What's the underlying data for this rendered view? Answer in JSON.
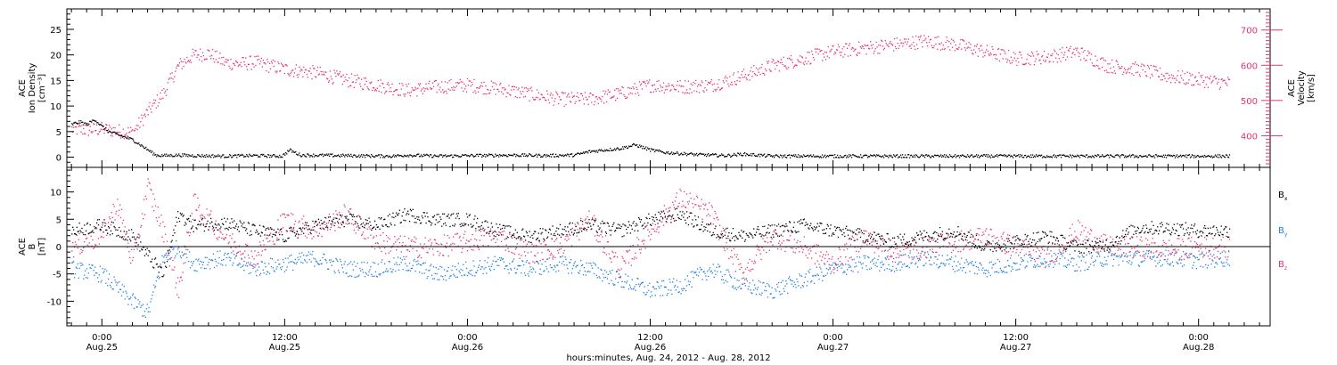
{
  "chart_data": [
    {
      "type": "scatter",
      "panel": "top",
      "left_axis": {
        "label_lines": [
          "ACE",
          "Ion Density",
          "[cm⁻³]"
        ],
        "ylim": [
          -2,
          29
        ],
        "ticks": [
          0,
          5,
          10,
          15,
          20,
          25
        ],
        "tick_labels": [
          "0",
          "5",
          "10",
          "15",
          "20",
          "25"
        ],
        "color": "#000000"
      },
      "right_axis": {
        "label_lines": [
          "ACE",
          "Velocity",
          "[km/s]"
        ],
        "ylim": [
          310,
          760
        ],
        "ticks": [
          400,
          500,
          600,
          700
        ],
        "tick_labels": [
          "400",
          "500",
          "600",
          "700"
        ],
        "color": "#e8336a"
      },
      "series": [
        {
          "axis": "left",
          "color": "#000000",
          "x_hours": [
            -2,
            -1.5,
            -1,
            -0.5,
            0,
            0.5,
            1,
            1.5,
            2,
            2.5,
            3,
            3.5,
            4,
            5,
            6,
            8,
            10,
            11.8,
            12.3,
            13,
            16,
            19,
            20,
            22,
            24,
            27,
            29,
            31,
            32,
            33,
            34,
            35,
            36,
            37,
            39,
            41,
            42,
            44,
            48,
            52,
            56,
            60,
            64,
            68,
            72,
            74
          ],
          "values": [
            6.5,
            7,
            6.5,
            7.5,
            6,
            5,
            4.5,
            4,
            3.5,
            2.5,
            1.5,
            0.5,
            0.4,
            0.5,
            0.4,
            0.3,
            0.4,
            0.3,
            1.5,
            0.5,
            0.4,
            0.3,
            0.5,
            0.3,
            0.4,
            0.5,
            0.4,
            0.5,
            1.2,
            1.5,
            1.8,
            2.5,
            1.5,
            1.0,
            0.6,
            0.4,
            0.7,
            0.3,
            0.3,
            0.3,
            0.3,
            0.3,
            0.3,
            0.3,
            0.3,
            0.3
          ]
        },
        {
          "axis": "right",
          "color": "#e8336a",
          "x_hours": [
            -2,
            -1,
            0,
            1,
            2,
            3,
            4,
            5,
            6,
            7,
            8,
            9,
            10,
            12,
            14,
            16,
            18,
            20,
            22,
            24,
            26,
            28,
            30,
            32,
            34,
            36,
            38,
            40,
            42,
            44,
            46,
            48,
            50,
            52,
            54,
            56,
            58,
            60,
            62,
            64,
            66,
            68,
            70,
            72,
            74
          ],
          "values": [
            420,
            418,
            420,
            415,
            410,
            470,
            520,
            600,
            630,
            635,
            610,
            605,
            610,
            590,
            580,
            560,
            545,
            530,
            540,
            545,
            535,
            520,
            505,
            505,
            520,
            545,
            540,
            545,
            570,
            600,
            620,
            640,
            650,
            660,
            670,
            660,
            640,
            620,
            625,
            640,
            600,
            590,
            570,
            560,
            550
          ]
        }
      ]
    },
    {
      "type": "scatter",
      "panel": "bottom",
      "left_axis": {
        "label_lines": [
          "ACE",
          "B",
          "[nT]"
        ],
        "ylim": [
          -14.5,
          14.5
        ],
        "ticks": [
          -10,
          -5,
          0,
          5,
          10
        ],
        "tick_labels": [
          "-10",
          "-5",
          "0",
          "5",
          "10"
        ]
      },
      "zero_line": true,
      "legend": [
        {
          "label": "B",
          "sub": "x",
          "color": "#000000"
        },
        {
          "label": "B",
          "sub": "y",
          "color": "#1f7fe0"
        },
        {
          "label": "B",
          "sub": "z",
          "color": "#e8336a"
        }
      ],
      "series": [
        {
          "name": "Bx",
          "color": "#000000",
          "x_hours": [
            -2,
            0,
            2,
            4,
            5,
            6,
            8,
            10,
            12,
            14,
            16,
            18,
            20,
            22,
            24,
            26,
            28,
            30,
            32,
            34,
            36,
            38,
            40,
            42,
            44,
            46,
            48,
            50,
            52,
            54,
            56,
            58,
            60,
            62,
            64,
            66,
            68,
            70,
            72,
            74
          ],
          "values": [
            3,
            4,
            2,
            -5,
            6,
            4,
            4.5,
            3,
            2,
            4,
            5,
            4,
            6,
            5,
            5,
            3,
            2,
            3,
            4,
            3,
            5,
            6,
            3,
            2,
            3,
            4,
            3,
            2,
            1,
            2,
            3,
            0,
            1,
            2,
            0,
            0.5,
            3.5,
            3.5,
            3,
            3
          ]
        },
        {
          "name": "By",
          "color": "#1f7fe0",
          "x_hours": [
            -2,
            0,
            2,
            3,
            4,
            5,
            6,
            8,
            10,
            12,
            14,
            16,
            18,
            20,
            22,
            24,
            26,
            28,
            30,
            32,
            34,
            36,
            38,
            40,
            42,
            44,
            46,
            48,
            50,
            52,
            54,
            56,
            58,
            60,
            62,
            64,
            66,
            68,
            70,
            72,
            74
          ],
          "values": [
            -4,
            -5,
            -10,
            -12,
            -2,
            0,
            -3,
            -2,
            -4,
            -3,
            -2,
            -4,
            -4,
            -3,
            -5,
            -4,
            -3,
            -4,
            -3,
            -4,
            -6,
            -8,
            -7,
            -4,
            -7,
            -8,
            -6,
            -4,
            -3,
            -3,
            -2,
            -3,
            -4,
            -3,
            -2,
            -3,
            -2,
            -2,
            -2,
            -2.5,
            -2
          ]
        },
        {
          "name": "Bz",
          "color": "#e8336a",
          "x_hours": [
            -2,
            0,
            1,
            2,
            3,
            4,
            5,
            6,
            8,
            10,
            12,
            14,
            16,
            18,
            20,
            22,
            24,
            26,
            28,
            30,
            32,
            34,
            36,
            38,
            40,
            42,
            44,
            46,
            48,
            50,
            52,
            54,
            56,
            58,
            60,
            62,
            64,
            66,
            68,
            70,
            72,
            74
          ],
          "values": [
            0,
            2,
            8,
            -3,
            11,
            3,
            -8,
            8,
            2,
            -2,
            5,
            3,
            6,
            1,
            0,
            0,
            1,
            2,
            -1,
            0,
            5,
            -4,
            3,
            9,
            6,
            -5,
            2,
            0,
            -3,
            2,
            -1,
            0,
            1,
            2,
            0,
            -2,
            3,
            0,
            0,
            -0.5,
            0,
            0
          ]
        }
      ]
    }
  ],
  "xaxis": {
    "ticks": [
      {
        "hour": 0,
        "time": "0:00",
        "day": "Aug.25"
      },
      {
        "hour": 12,
        "time": "12:00",
        "day": "Aug.25"
      },
      {
        "hour": 24,
        "time": "0:00",
        "day": "Aug.26"
      },
      {
        "hour": 36,
        "time": "12:00",
        "day": "Aug.26"
      },
      {
        "hour": 48,
        "time": "0:00",
        "day": "Aug.27"
      },
      {
        "hour": 60,
        "time": "12:00",
        "day": "Aug.27"
      },
      {
        "hour": 72,
        "time": "0:00",
        "day": "Aug.28"
      }
    ],
    "xlim": [
      -2.3,
      76.7
    ],
    "label": "hours:minutes, Aug. 24, 2012 - Aug. 28, 2012"
  }
}
